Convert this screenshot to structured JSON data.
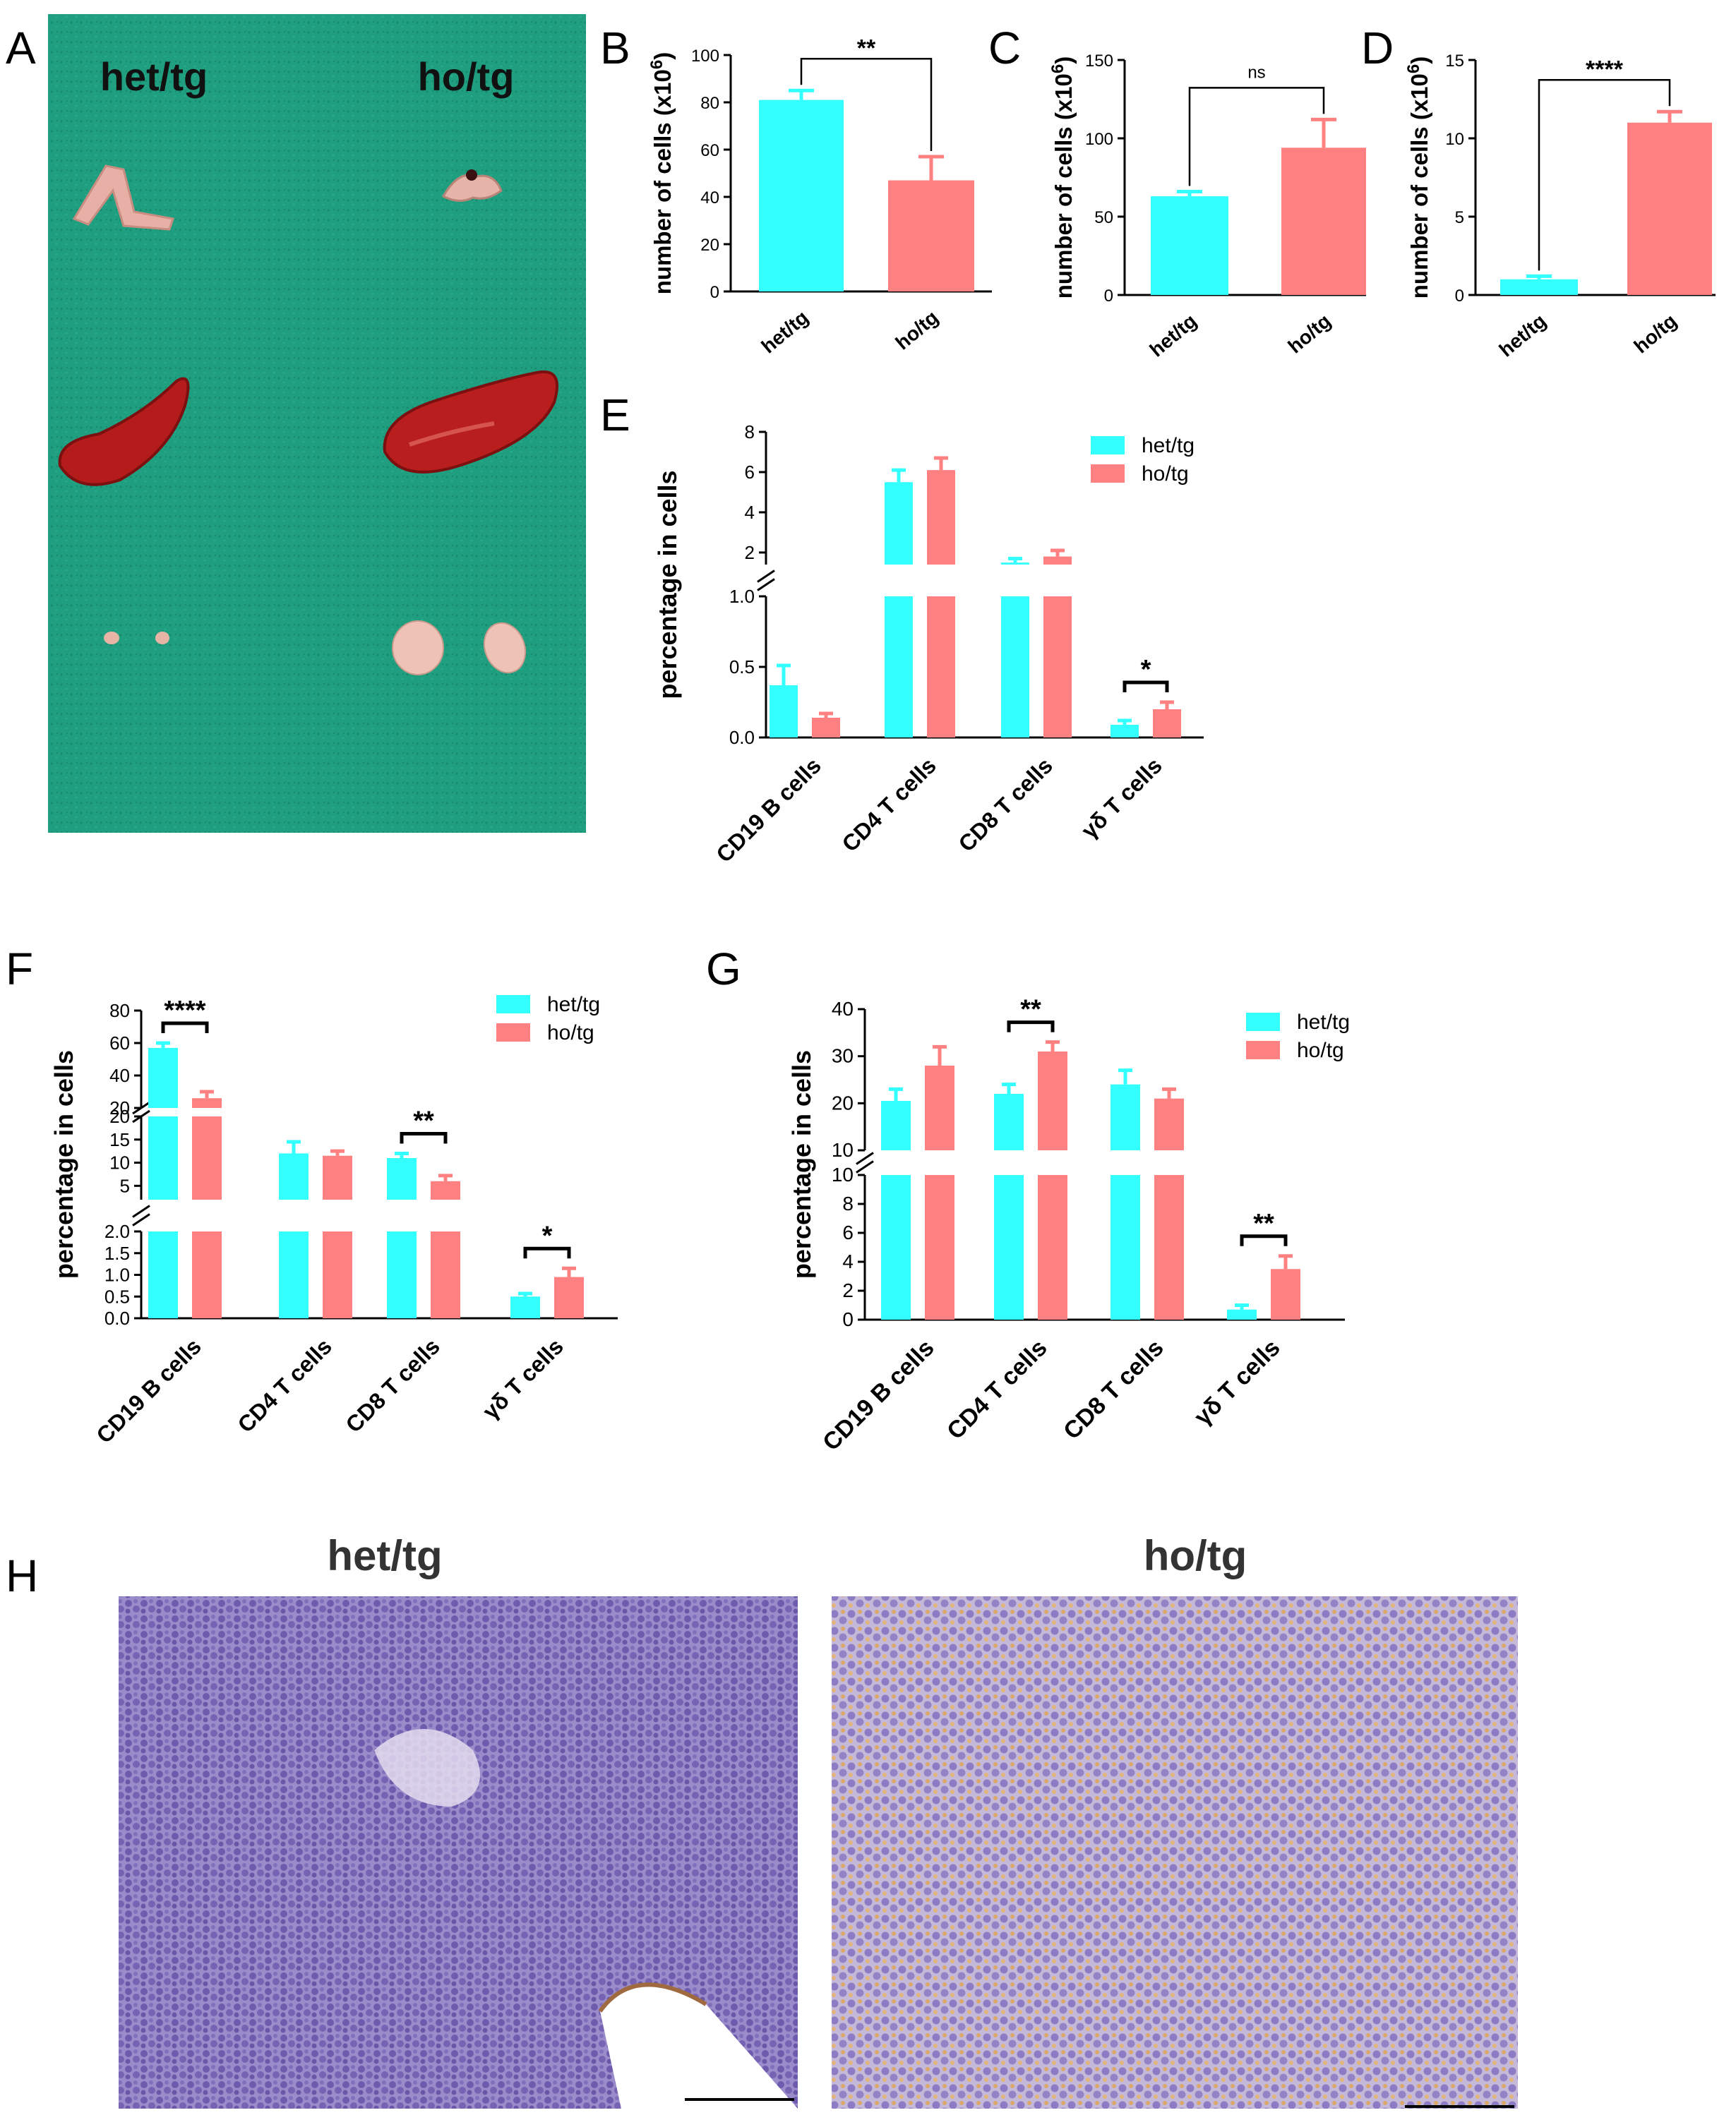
{
  "panel_letters": {
    "A": "A",
    "B": "B",
    "C": "C",
    "D": "D",
    "E": "E",
    "F": "F",
    "G": "G",
    "H": "H"
  },
  "colors": {
    "het": "#33FFFF",
    "ho": "#FF8080",
    "photo_bg": "#1E9E7E",
    "tissue_red": "#B01E1E",
    "tissue_pink": "#E8B0A8",
    "histo_purple": "#8A7AC0",
    "histo_brown": "#C89040"
  },
  "panel_A": {
    "labels": [
      "het/tg",
      "ho/tg"
    ],
    "organs": [
      {
        "het": "thymus-icon",
        "ho": "thymus-icon"
      },
      {
        "het": "spleen-icon",
        "ho": "spleen-icon"
      },
      {
        "het": "lymph-node-icon",
        "ho": "lymph-node-icon"
      }
    ]
  },
  "panel_H": {
    "labels": [
      "het/tg",
      "ho/tg"
    ]
  },
  "chart_data": [
    {
      "id": "B",
      "type": "bar",
      "categories": [
        "het/tg",
        "ho/tg"
      ],
      "values": [
        81,
        47
      ],
      "errors": [
        4,
        10
      ],
      "ylabel": "number of cells",
      "ylabel_unit": "(x10",
      "ylabel_exp": "6",
      "ylabel_close": ")",
      "ylim": [
        0,
        100
      ],
      "yticks": [
        0,
        20,
        40,
        60,
        80,
        100
      ],
      "significance": [
        {
          "from": 0,
          "to": 1,
          "label": "**"
        }
      ]
    },
    {
      "id": "C",
      "type": "bar",
      "categories": [
        "het/tg",
        "ho/tg"
      ],
      "values": [
        63,
        94
      ],
      "errors": [
        3,
        18
      ],
      "ylabel": "number of cells",
      "ylabel_unit": "(x10",
      "ylabel_exp": "6",
      "ylabel_close": ")",
      "ylim": [
        0,
        150
      ],
      "yticks": [
        0,
        50,
        100,
        150
      ],
      "significance": [
        {
          "from": 0,
          "to": 1,
          "label": "ns"
        }
      ]
    },
    {
      "id": "D",
      "type": "bar",
      "categories": [
        "het/tg",
        "ho/tg"
      ],
      "values": [
        1.0,
        11.0
      ],
      "errors": [
        0.2,
        0.7
      ],
      "ylabel": "number of cells",
      "ylabel_unit": "(x10",
      "ylabel_exp": "6",
      "ylabel_close": ")",
      "ylim": [
        0,
        15
      ],
      "yticks": [
        0,
        5,
        10,
        15
      ],
      "significance": [
        {
          "from": 0,
          "to": 1,
          "label": "****"
        }
      ]
    },
    {
      "id": "E",
      "type": "bar",
      "categories": [
        "CD19 B cells",
        "CD4 T cells",
        "CD8 T cells",
        "γδ T cells"
      ],
      "series": [
        {
          "name": "het/tg",
          "values": [
            0.37,
            5.5,
            1.5,
            0.09
          ],
          "errors": [
            0.14,
            0.6,
            0.2,
            0.03
          ]
        },
        {
          "name": "ho/tg",
          "values": [
            0.14,
            6.1,
            1.8,
            0.2
          ],
          "errors": [
            0.03,
            0.6,
            0.3,
            0.05
          ]
        }
      ],
      "ylabel": "percentage in cells",
      "legend_position": "top-right",
      "segments": [
        {
          "range": [
            0,
            1.0
          ],
          "ticks": [
            0.0,
            0.5,
            1.0
          ],
          "tick_labels": [
            "0.0",
            "0.5",
            "1.0"
          ]
        },
        {
          "range": [
            1.4,
            8
          ],
          "ticks": [
            2,
            4,
            6,
            8
          ],
          "tick_labels": [
            "2",
            "4",
            "6",
            "8"
          ]
        }
      ],
      "significance": [
        {
          "category": 3,
          "label": "*"
        }
      ]
    },
    {
      "id": "F",
      "type": "bar",
      "categories": [
        "CD19 B cells",
        "CD4 T cells",
        "CD8 T cells",
        "γδ T cells"
      ],
      "series": [
        {
          "name": "het/tg",
          "values": [
            57,
            12,
            11,
            0.5
          ],
          "errors": [
            3,
            2.5,
            1,
            0.07
          ]
        },
        {
          "name": "ho/tg",
          "values": [
            26,
            11.5,
            6,
            0.95
          ],
          "errors": [
            4,
            1,
            1.2,
            0.2
          ]
        }
      ],
      "ylabel": "percentage in cells",
      "legend_position": "top-right",
      "segments": [
        {
          "range": [
            0,
            2.0
          ],
          "ticks": [
            0.0,
            0.5,
            1.0,
            1.5,
            2.0
          ],
          "tick_labels": [
            "0.0",
            "0.5",
            "1.0",
            "1.5",
            "2.0"
          ]
        },
        {
          "range": [
            2,
            20
          ],
          "ticks": [
            5,
            10,
            15,
            20
          ],
          "tick_labels": [
            "5",
            "10",
            "15",
            "20"
          ]
        },
        {
          "range": [
            20,
            80
          ],
          "ticks": [
            20,
            40,
            60,
            80
          ],
          "tick_labels": [
            "20",
            "40",
            "60",
            "80"
          ]
        }
      ],
      "significance": [
        {
          "category": 0,
          "label": "****"
        },
        {
          "category": 2,
          "label": "**"
        },
        {
          "category": 3,
          "label": "*"
        }
      ]
    },
    {
      "id": "G",
      "type": "bar",
      "categories": [
        "CD19 B cells",
        "CD4 T cells",
        "CD8 T cells",
        "γδ T cells"
      ],
      "series": [
        {
          "name": "het/tg",
          "values": [
            20.5,
            22,
            24,
            0.7
          ],
          "errors": [
            2.5,
            2,
            3,
            0.3
          ]
        },
        {
          "name": "ho/tg",
          "values": [
            28,
            31,
            21,
            3.5
          ],
          "errors": [
            4,
            2,
            2,
            0.9
          ]
        }
      ],
      "ylabel": "percentage in cells",
      "legend_position": "top-right",
      "segments": [
        {
          "range": [
            0,
            10
          ],
          "ticks": [
            0,
            2,
            4,
            6,
            8,
            10
          ],
          "tick_labels": [
            "0",
            "2",
            "4",
            "6",
            "8",
            "10"
          ]
        },
        {
          "range": [
            10,
            40
          ],
          "ticks": [
            10,
            20,
            30,
            40
          ],
          "tick_labels": [
            "10",
            "20",
            "30",
            "40"
          ]
        }
      ],
      "significance": [
        {
          "category": 1,
          "label": "**"
        },
        {
          "category": 3,
          "label": "**"
        }
      ]
    }
  ]
}
